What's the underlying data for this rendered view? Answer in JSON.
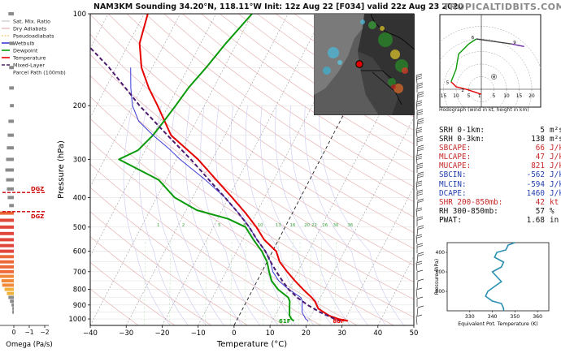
{
  "header": {
    "title": "NAM3KM Sounding 34.20°N, 118.11°W Init: 12z Aug 22 [F034] valid 22z Aug 23 2020",
    "brand": "TROPICALTIDBITS.COM"
  },
  "colors": {
    "temperature": "#e60000",
    "dewpoint": "#0a9a0a",
    "wetbulb": "#3b3bd6",
    "parcel": "#4b1a6e",
    "dgz": "#cc0000",
    "theta_e": "#2a8fb0"
  },
  "legend": {
    "items": [
      {
        "label": "Sat. Mix. Ratio"
      },
      {
        "label": "Dry Adiabats"
      },
      {
        "label": "Pseudoadiabats"
      },
      {
        "label": "Wetbulb"
      },
      {
        "label": "Dewpoint"
      },
      {
        "label": "Temperature"
      },
      {
        "label": "Mixed-Layer"
      },
      {
        "label": "Parcel Path (100mb)"
      }
    ]
  },
  "omega": {
    "xlabel": "Omega (Pa/s)",
    "ticks": [
      "0",
      "−1",
      "−2"
    ],
    "dgz_label": "DGZ",
    "dgz_pressures": [
      385,
      445
    ],
    "values": [
      {
        "p": 100,
        "w": 0.35
      },
      {
        "p": 125,
        "w": 0.3
      },
      {
        "p": 150,
        "w": 0.3
      },
      {
        "p": 175,
        "w": 0.3
      },
      {
        "p": 200,
        "w": 0.25
      },
      {
        "p": 225,
        "w": 0.35
      },
      {
        "p": 250,
        "w": 0.4
      },
      {
        "p": 275,
        "w": 0.45
      },
      {
        "p": 300,
        "w": 0.5
      },
      {
        "p": 325,
        "w": 0.55
      },
      {
        "p": 350,
        "w": 0.5
      },
      {
        "p": 375,
        "w": 0.45
      },
      {
        "p": 400,
        "w": 0.4
      },
      {
        "p": 425,
        "w": 0.3
      },
      {
        "p": 450,
        "w": 1.1
      },
      {
        "p": 475,
        "w": 1.25
      },
      {
        "p": 500,
        "w": 1.25
      },
      {
        "p": 525,
        "w": 1.2
      },
      {
        "p": 550,
        "w": 1.2
      },
      {
        "p": 575,
        "w": 1.15
      },
      {
        "p": 600,
        "w": 1.15
      },
      {
        "p": 625,
        "w": 1.1
      },
      {
        "p": 650,
        "w": 1.05
      },
      {
        "p": 675,
        "w": 1.0
      },
      {
        "p": 700,
        "w": 0.95
      },
      {
        "p": 725,
        "w": 0.9
      },
      {
        "p": 750,
        "w": 0.8
      },
      {
        "p": 775,
        "w": 0.75
      },
      {
        "p": 800,
        "w": 0.6
      },
      {
        "p": 825,
        "w": 0.45
      },
      {
        "p": 850,
        "w": 0.35
      },
      {
        "p": 875,
        "w": 0.25
      },
      {
        "p": 900,
        "w": 0.15
      },
      {
        "p": 925,
        "w": 0.1
      },
      {
        "p": 950,
        "w": 0.1
      }
    ]
  },
  "chart_data": [
    {
      "type": "line",
      "title": "NAM3KM Sounding 34.20°N, 118.11°W Init: 12z Aug 22 [F034] valid 22z Aug 23 2020",
      "xlabel": "Temperature (°C)",
      "ylabel": "Pressure (hPa)",
      "skew_t": true,
      "log_pressure_axis": true,
      "xlim": [
        -40,
        50
      ],
      "ylim": [
        1050,
        100
      ],
      "x_ticks": [
        -40,
        -30,
        -20,
        -10,
        0,
        10,
        20,
        30,
        40,
        50
      ],
      "y_ticks": [
        100,
        200,
        300,
        400,
        500,
        600,
        700,
        800,
        900,
        1000
      ],
      "surface_labels": {
        "temperature": "88F",
        "dewpoint": "61F"
      },
      "mixing_ratio_labels": [
        "1",
        "2",
        "5",
        "8",
        "10",
        "13",
        "16",
        "20",
        "22",
        "26",
        "30",
        "36"
      ],
      "series": [
        {
          "name": "Temperature",
          "color": "#e60000",
          "points": [
            [
              1015,
              31
            ],
            [
              1000,
              28
            ],
            [
              975,
              25
            ],
            [
              950,
              23
            ],
            [
              925,
              21
            ],
            [
              900,
              20
            ],
            [
              875,
              19
            ],
            [
              850,
              17.5
            ],
            [
              800,
              14
            ],
            [
              750,
              10.5
            ],
            [
              700,
              7
            ],
            [
              650,
              3.5
            ],
            [
              600,
              1
            ],
            [
              550,
              -4
            ],
            [
              500,
              -8
            ],
            [
              450,
              -13
            ],
            [
              400,
              -19
            ],
            [
              350,
              -26
            ],
            [
              300,
              -34
            ],
            [
              250,
              -45
            ],
            [
              200,
              -53
            ],
            [
              175,
              -58
            ],
            [
              150,
              -63
            ],
            [
              125,
              -67
            ],
            [
              100,
              -69
            ]
          ]
        },
        {
          "name": "Dewpoint",
          "color": "#0a9a0a",
          "points": [
            [
              1015,
              16
            ],
            [
              1000,
              15
            ],
            [
              975,
              14
            ],
            [
              950,
              13.5
            ],
            [
              925,
              13
            ],
            [
              900,
              12.5
            ],
            [
              875,
              12
            ],
            [
              850,
              11
            ],
            [
              800,
              7
            ],
            [
              750,
              4
            ],
            [
              700,
              2
            ],
            [
              650,
              0
            ],
            [
              600,
              -3
            ],
            [
              550,
              -7
            ],
            [
              500,
              -11
            ],
            [
              470,
              -17
            ],
            [
              440,
              -27
            ],
            [
              400,
              -35
            ],
            [
              350,
              -42
            ],
            [
              300,
              -56
            ],
            [
              280,
              -52
            ],
            [
              250,
              -50
            ],
            [
              225,
              -49
            ],
            [
              200,
              -48
            ],
            [
              175,
              -47
            ],
            [
              150,
              -45
            ],
            [
              125,
              -43
            ],
            [
              100,
              -40
            ]
          ]
        },
        {
          "name": "Wetbulb",
          "color": "#3b3bd6",
          "points": [
            [
              1015,
              20
            ],
            [
              1000,
              19
            ],
            [
              975,
              18
            ],
            [
              950,
              17
            ],
            [
              925,
              16.5
            ],
            [
              900,
              16
            ],
            [
              875,
              15.5
            ],
            [
              850,
              14.5
            ],
            [
              800,
              10
            ],
            [
              750,
              6
            ],
            [
              700,
              3
            ],
            [
              650,
              1
            ],
            [
              600,
              -2
            ],
            [
              550,
              -6
            ],
            [
              500,
              -10
            ],
            [
              450,
              -15
            ],
            [
              400,
              -21
            ],
            [
              350,
              -29
            ],
            [
              300,
              -39
            ],
            [
              275,
              -44
            ],
            [
              250,
              -50
            ],
            [
              225,
              -56
            ],
            [
              200,
              -60
            ],
            [
              175,
              -63
            ],
            [
              150,
              -66
            ]
          ]
        },
        {
          "name": "Mixed-Layer Parcel Path (100mb)",
          "color": "#4b1a6e",
          "dashed": true,
          "points": [
            [
              1015,
              29
            ],
            [
              1000,
              27
            ],
            [
              950,
              22
            ],
            [
              900,
              17.5
            ],
            [
              850,
              13.5
            ],
            [
              800,
              10
            ],
            [
              750,
              7
            ],
            [
              700,
              4
            ],
            [
              650,
              1
            ],
            [
              600,
              -2
            ],
            [
              550,
              -6
            ],
            [
              500,
              -10
            ],
            [
              450,
              -15
            ],
            [
              400,
              -21
            ],
            [
              350,
              -28
            ],
            [
              300,
              -36
            ],
            [
              250,
              -46
            ],
            [
              200,
              -58
            ],
            [
              150,
              -72
            ],
            [
              100,
              -94
            ]
          ]
        }
      ]
    },
    {
      "type": "line",
      "title": "Hodograph (wind in kt, height in km)",
      "xlabel": "",
      "ylabel": "",
      "rings": [
        5,
        10,
        15,
        20,
        25
      ],
      "tick_labels": [
        "15",
        "10",
        "5",
        "5",
        "10",
        "15",
        "20",
        "25"
      ],
      "height_labels": [
        "1",
        "2",
        "5",
        "6",
        "9"
      ],
      "mean_label": "M",
      "series": [
        {
          "name": "0-1km",
          "color": "#e60000",
          "points": [
            [
              0,
              -2
            ],
            [
              -3,
              -1
            ],
            [
              -6,
              0
            ]
          ]
        },
        {
          "name": "1-3km",
          "color": "#e60000",
          "points": [
            [
              -6,
              0
            ],
            [
              -10,
              1
            ],
            [
              -12,
              3
            ]
          ]
        },
        {
          "name": "3-6km",
          "color": "#0a9a0a",
          "points": [
            [
              -12,
              3
            ],
            [
              -10,
              8
            ],
            [
              -9,
              14
            ],
            [
              -5,
              18
            ],
            [
              -2,
              20
            ]
          ]
        },
        {
          "name": "6-9km",
          "color": "#444444",
          "points": [
            [
              -2,
              20
            ],
            [
              5,
              19
            ],
            [
              12,
              18
            ]
          ]
        },
        {
          "name": "9-12km",
          "color": "#6a2aa8",
          "points": [
            [
              12,
              18
            ],
            [
              17,
              17
            ]
          ]
        }
      ]
    },
    {
      "type": "line",
      "title": "",
      "xlabel": "Equivalent Pot. Temperature (K)",
      "ylabel": "Pressure (hPa)",
      "xlim": [
        320,
        365
      ],
      "ylim": [
        1000,
        300
      ],
      "x_ticks": [
        330,
        340,
        350,
        360
      ],
      "y_ticks": [
        400,
        600,
        800
      ],
      "series": [
        {
          "name": "theta-e",
          "color": "#2a8fb0",
          "points": [
            [
              350,
              300
            ],
            [
              347,
              325
            ],
            [
              346,
              375
            ],
            [
              342,
              400
            ],
            [
              341,
              450
            ],
            [
              345,
              500
            ],
            [
              344,
              550
            ],
            [
              340,
              600
            ],
            [
              342,
              650
            ],
            [
              344,
              700
            ],
            [
              341,
              750
            ],
            [
              338,
              800
            ],
            [
              337,
              850
            ],
            [
              340,
              900
            ],
            [
              344,
              925
            ],
            [
              345,
              975
            ],
            [
              345,
              1000
            ]
          ]
        }
      ]
    }
  ],
  "stats": {
    "rows": [
      {
        "label": "SRH 0-1km:",
        "value": "5",
        "unit": "m²s⁻²",
        "color": "#111111"
      },
      {
        "label": "SRH 0-3km:",
        "value": "138",
        "unit": "m²s⁻²",
        "color": "#111111"
      },
      {
        "label": "SBCAPE:",
        "value": "66",
        "unit": "J/kg",
        "color": "#c62828"
      },
      {
        "label": "MLCAPE:",
        "value": "47",
        "unit": "J/kg",
        "color": "#c62828"
      },
      {
        "label": "MUCAPE:",
        "value": "821",
        "unit": "J/kg",
        "color": "#c62828"
      },
      {
        "label": "SBCIN:",
        "value": "-562",
        "unit": "J/kg",
        "color": "#2340b0"
      },
      {
        "label": "MLCIN:",
        "value": "-594",
        "unit": "J/kg",
        "color": "#2340b0"
      },
      {
        "label": "DCAPE:",
        "value": "1460",
        "unit": "J/kg",
        "color": "#2340b0"
      },
      {
        "label": "SHR 200-850mb:",
        "value": "42",
        "unit": "kt",
        "color": "#c62828"
      },
      {
        "label": "RH 300-850mb:",
        "value": "57",
        "unit": "%",
        "color": "#111111"
      },
      {
        "label": "PWAT:",
        "value": "1.68",
        "unit": "in",
        "color": "#111111"
      }
    ]
  }
}
